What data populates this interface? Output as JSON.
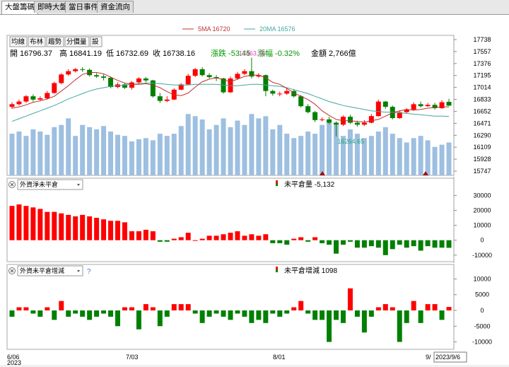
{
  "tabs": [
    {
      "label": "大盤籌碼",
      "active": true
    },
    {
      "label": "即時大盤",
      "active": false
    },
    {
      "label": "當日事件",
      "active": false
    },
    {
      "label": "資金流向",
      "active": false
    }
  ],
  "toolbar_buttons": [
    "均線",
    "布林",
    "趨勢",
    "分價量",
    "設"
  ],
  "legend": {
    "ma5": "5MA 16720",
    "ma5_color": "#c03030",
    "ma20": "20MA 16576",
    "ma20_color": "#40a8a0"
  },
  "ohlc": {
    "open": "開 16796.37",
    "high": "高 16841.19",
    "low": "低 16732.69",
    "close": "收 16738.16",
    "change": "漲跌 -53.45",
    "pct": "漲幅 -0.32%",
    "amount": "金額 2,766億"
  },
  "colors": {
    "up": "#ff0000",
    "down": "#008000",
    "volume": "#9dbfe0",
    "text_green": "#009900",
    "annot_pink": "#e040c0",
    "annot_green": "#20a080"
  },
  "price_axis": [
    "17738",
    "17557",
    "17376",
    "17195",
    "17014",
    "16833",
    "16652",
    "16471",
    "16290",
    "16109",
    "15928",
    "15747"
  ],
  "annotations": {
    "high": "17463.76",
    "low": "16264.65"
  },
  "sub1": {
    "dropdown": "外資淨未平倉",
    "label": "未平倉量 -5,132",
    "axis": [
      "30000",
      "20000",
      "10000",
      "0",
      "-10000"
    ]
  },
  "sub2": {
    "dropdown": "外資未平倉增減",
    "help": "?",
    "label": "未平倉增減 1098",
    "axis": [
      "10000",
      "5000",
      "0",
      "-5000",
      "-10000"
    ]
  },
  "dates": {
    "d1": "6/06",
    "year": "2023",
    "d2": "7/03",
    "d3": "8/01",
    "d4": "9/",
    "cursor": "2023/9/6"
  },
  "chart_data": {
    "type": "candlestick",
    "series_count": 63,
    "candles": [
      {
        "o": 16720,
        "c": 16760,
        "h": 16790,
        "l": 16690
      },
      {
        "o": 16760,
        "c": 16800,
        "h": 16830,
        "l": 16740
      },
      {
        "o": 16800,
        "c": 16880,
        "h": 16900,
        "l": 16780
      },
      {
        "o": 16880,
        "c": 16830,
        "h": 16910,
        "l": 16800
      },
      {
        "o": 16830,
        "c": 16850,
        "h": 16880,
        "l": 16810
      },
      {
        "o": 16850,
        "c": 16930,
        "h": 16960,
        "l": 16830
      },
      {
        "o": 16930,
        "c": 17080,
        "h": 17100,
        "l": 16920
      },
      {
        "o": 17080,
        "c": 17210,
        "h": 17230,
        "l": 17060
      },
      {
        "o": 17210,
        "c": 17260,
        "h": 17290,
        "l": 17190
      },
      {
        "o": 17260,
        "c": 17290,
        "h": 17310,
        "l": 17240
      },
      {
        "o": 17290,
        "c": 17280,
        "h": 17320,
        "l": 17250
      },
      {
        "o": 17280,
        "c": 17200,
        "h": 17300,
        "l": 17180
      },
      {
        "o": 17200,
        "c": 17180,
        "h": 17230,
        "l": 17160
      },
      {
        "o": 17180,
        "c": 17160,
        "h": 17210,
        "l": 17120
      },
      {
        "o": 17160,
        "c": 17020,
        "h": 17180,
        "l": 17000
      },
      {
        "o": 17020,
        "c": 17060,
        "h": 17090,
        "l": 17000
      },
      {
        "o": 17060,
        "c": 17010,
        "h": 17080,
        "l": 16990
      },
      {
        "o": 17010,
        "c": 17090,
        "h": 17110,
        "l": 16980
      },
      {
        "o": 17090,
        "c": 17150,
        "h": 17170,
        "l": 17070
      },
      {
        "o": 17150,
        "c": 17120,
        "h": 17170,
        "l": 17090
      },
      {
        "o": 17120,
        "c": 16880,
        "h": 17130,
        "l": 16860
      },
      {
        "o": 16880,
        "c": 16810,
        "h": 16930,
        "l": 16780
      },
      {
        "o": 16810,
        "c": 16830,
        "h": 16880,
        "l": 16790
      },
      {
        "o": 16830,
        "c": 16980,
        "h": 17000,
        "l": 16820
      },
      {
        "o": 16980,
        "c": 17060,
        "h": 17080,
        "l": 16970
      },
      {
        "o": 17060,
        "c": 17190,
        "h": 17220,
        "l": 17050
      },
      {
        "o": 17190,
        "c": 17290,
        "h": 17310,
        "l": 17170
      },
      {
        "o": 17290,
        "c": 17200,
        "h": 17320,
        "l": 17180
      },
      {
        "o": 17200,
        "c": 17170,
        "h": 17230,
        "l": 17150
      },
      {
        "o": 17170,
        "c": 17150,
        "h": 17200,
        "l": 17110
      },
      {
        "o": 17150,
        "c": 16940,
        "h": 17160,
        "l": 16920
      },
      {
        "o": 16940,
        "c": 17150,
        "h": 17180,
        "l": 16930
      },
      {
        "o": 17150,
        "c": 17220,
        "h": 17250,
        "l": 17130
      },
      {
        "o": 17220,
        "c": 17260,
        "h": 17290,
        "l": 17200
      },
      {
        "o": 17260,
        "c": 17180,
        "h": 17464,
        "l": 17150
      },
      {
        "o": 17180,
        "c": 17200,
        "h": 17230,
        "l": 17160
      },
      {
        "o": 17200,
        "c": 16960,
        "h": 17210,
        "l": 16880
      },
      {
        "o": 16960,
        "c": 16920,
        "h": 16980,
        "l": 16890
      },
      {
        "o": 16920,
        "c": 16920,
        "h": 16950,
        "l": 16880
      },
      {
        "o": 16920,
        "c": 16960,
        "h": 17000,
        "l": 16900
      },
      {
        "o": 16960,
        "c": 16880,
        "h": 16990,
        "l": 16860
      },
      {
        "o": 16880,
        "c": 16730,
        "h": 16900,
        "l": 16710
      },
      {
        "o": 16730,
        "c": 16640,
        "h": 16760,
        "l": 16620
      },
      {
        "o": 16640,
        "c": 16520,
        "h": 16660,
        "l": 16490
      },
      {
        "o": 16520,
        "c": 16530,
        "h": 16560,
        "l": 16500
      },
      {
        "o": 16530,
        "c": 16480,
        "h": 16570,
        "l": 16460
      },
      {
        "o": 16480,
        "c": 16450,
        "h": 16500,
        "l": 16270
      },
      {
        "o": 16450,
        "c": 16570,
        "h": 16590,
        "l": 16430
      },
      {
        "o": 16570,
        "c": 16480,
        "h": 16600,
        "l": 16460
      },
      {
        "o": 16480,
        "c": 16450,
        "h": 16510,
        "l": 16420
      },
      {
        "o": 16450,
        "c": 16480,
        "h": 16520,
        "l": 16430
      },
      {
        "o": 16480,
        "c": 16580,
        "h": 16610,
        "l": 16470
      },
      {
        "o": 16580,
        "c": 16800,
        "h": 16830,
        "l": 16570
      },
      {
        "o": 16800,
        "c": 16720,
        "h": 16810,
        "l": 16690
      },
      {
        "o": 16720,
        "c": 16550,
        "h": 16740,
        "l": 16530
      },
      {
        "o": 16550,
        "c": 16640,
        "h": 16660,
        "l": 16540
      },
      {
        "o": 16640,
        "c": 16680,
        "h": 16700,
        "l": 16620
      },
      {
        "o": 16680,
        "c": 16760,
        "h": 16790,
        "l": 16660
      },
      {
        "o": 16760,
        "c": 16730,
        "h": 16800,
        "l": 16710
      },
      {
        "o": 16730,
        "c": 16750,
        "h": 16780,
        "l": 16720
      },
      {
        "o": 16750,
        "c": 16700,
        "h": 16780,
        "l": 16680
      },
      {
        "o": 16700,
        "c": 16790,
        "h": 16820,
        "l": 16690
      },
      {
        "o": 16796,
        "c": 16738,
        "h": 16841,
        "l": 16733
      }
    ],
    "volume": [
      38,
      40,
      36,
      42,
      40,
      37,
      44,
      46,
      52,
      36,
      46,
      44,
      42,
      45,
      40,
      37,
      36,
      31,
      33,
      34,
      32,
      38,
      36,
      38,
      45,
      56,
      54,
      51,
      42,
      46,
      52,
      44,
      50,
      46,
      56,
      52,
      54,
      42,
      46,
      38,
      34,
      36,
      40,
      38,
      46,
      48,
      46,
      36,
      42,
      38,
      34,
      36,
      40,
      44,
      38,
      34,
      30,
      34,
      36,
      32,
      26,
      28,
      30
    ],
    "net_oi": [
      23,
      24,
      23,
      22,
      21,
      19,
      19,
      18,
      17,
      16,
      17,
      16,
      15,
      14,
      13,
      13,
      12,
      6,
      6,
      7,
      6,
      -1,
      -1,
      1,
      2,
      5,
      0,
      1,
      3,
      3,
      4,
      5,
      6,
      3,
      4,
      3,
      4,
      -2,
      -2,
      -3,
      1,
      2,
      -1,
      2,
      -2,
      -3,
      -9,
      -3,
      -1,
      -5,
      -5,
      -4,
      -5,
      -10,
      -6,
      -3,
      -5,
      -4,
      -7,
      -4,
      -5,
      -5,
      -5.1
    ],
    "oi_change": [
      -2,
      1,
      1,
      -1,
      -2,
      1,
      -3,
      3,
      -2,
      -1,
      -2,
      -3,
      -2,
      -1,
      -2,
      -5,
      1,
      1,
      -6,
      2,
      1,
      -5,
      -2,
      2,
      2,
      2,
      -1,
      -4,
      -2,
      -1,
      -2,
      -3,
      -1,
      -2,
      -4,
      -3,
      -4,
      -1,
      -2,
      -1,
      1,
      3,
      -1,
      -3,
      -3,
      -10,
      -3,
      -4,
      7,
      -2,
      -7,
      -2,
      1,
      2,
      1,
      -10,
      -4,
      3,
      -4,
      2,
      2,
      -3,
      1.1
    ],
    "ma5": [
      16700,
      16720,
      16750,
      16790,
      16810,
      16840,
      16880,
      16960,
      17040,
      17130,
      17210,
      17240,
      17240,
      17220,
      17170,
      17120,
      17080,
      17060,
      17060,
      17070,
      17050,
      17010,
      16950,
      16900,
      16890,
      16930,
      17020,
      17100,
      17140,
      17160,
      17130,
      17100,
      17140,
      17180,
      17200,
      17200,
      17160,
      17090,
      17060,
      17000,
      16930,
      16880,
      16830,
      16760,
      16660,
      16590,
      16530,
      16510,
      16510,
      16500,
      16490,
      16510,
      16530,
      16580,
      16630,
      16660,
      16680,
      16670,
      16680,
      16700,
      16710,
      16720,
      16720
    ],
    "ma20": [
      16500,
      16540,
      16580,
      16620,
      16660,
      16700,
      16740,
      16790,
      16840,
      16880,
      16920,
      16960,
      16990,
      17010,
      17030,
      17040,
      17050,
      17060,
      17070,
      17080,
      17080,
      17070,
      17060,
      17050,
      17050,
      17050,
      17060,
      17060,
      17060,
      17060,
      17050,
      17040,
      17040,
      17050,
      17060,
      17060,
      17050,
      17040,
      17030,
      17010,
      16980,
      16950,
      16920,
      16880,
      16840,
      16800,
      16770,
      16740,
      16720,
      16700,
      16680,
      16660,
      16650,
      16640,
      16640,
      16630,
      16620,
      16610,
      16600,
      16590,
      16580,
      16580,
      16576
    ],
    "ylim": [
      15747,
      17738
    ],
    "oi_ylim": [
      -12000,
      34000
    ],
    "chg_ylim": [
      -11000,
      11000
    ]
  }
}
